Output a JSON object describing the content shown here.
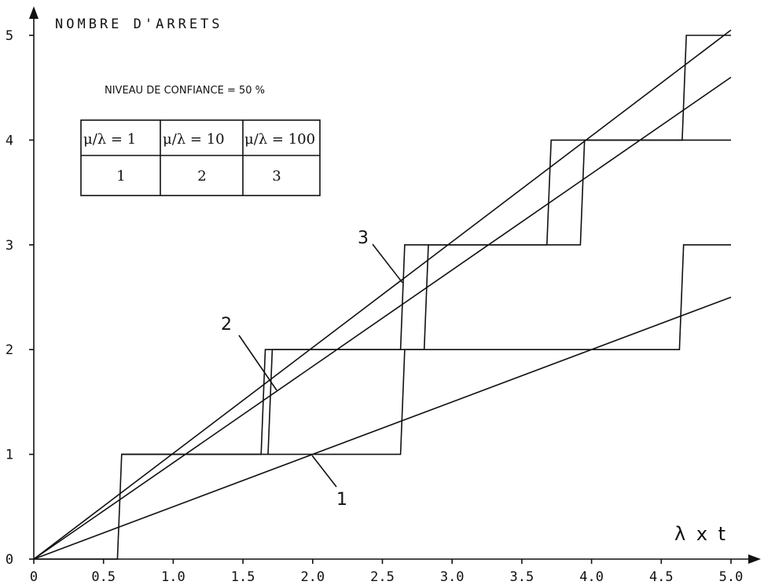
{
  "chart_data": {
    "type": "line",
    "title": "NOMBRE D'ARRETS",
    "subtitle": "NIVEAU DE CONFIANCE = 50 %",
    "xlabel": "λ x t",
    "xlim": [
      0,
      5.0
    ],
    "ylim": [
      0,
      5
    ],
    "xticks": [
      "0",
      "0.5",
      "1.0",
      "1.5",
      "2.0",
      "2.5",
      "3.0",
      "3.5",
      "4.0",
      "4.5",
      "5.0"
    ],
    "yticks": [
      "0",
      "1",
      "2",
      "3",
      "4",
      "5"
    ],
    "legend_table": {
      "headers": [
        "μ/λ = 1",
        "μ/λ = 10",
        "μ/λ = 100"
      ],
      "values": [
        "1",
        "2",
        "3"
      ]
    },
    "series": [
      {
        "name": "1",
        "x": [
          0,
          5.0
        ],
        "y": [
          0,
          2.5
        ]
      },
      {
        "name": "2",
        "x": [
          0,
          5.0
        ],
        "y": [
          0,
          4.6
        ]
      },
      {
        "name": "3",
        "x": [
          0,
          5.0
        ],
        "y": [
          0,
          5.05
        ]
      }
    ],
    "step_curves": [
      {
        "x": [
          0,
          0.6,
          0.63,
          2.63,
          2.66,
          4.63,
          4.66,
          5.0
        ],
        "y": [
          0,
          0,
          1,
          1,
          2,
          2,
          3,
          3
        ]
      },
      {
        "x": [
          0.63,
          1.63,
          1.66,
          2.63,
          2.66,
          3.68,
          3.71,
          4.65,
          4.68,
          5.0
        ],
        "y": [
          1,
          1,
          2,
          2,
          3,
          3,
          4,
          4,
          5,
          5
        ]
      },
      {
        "x": [
          1.68,
          1.71,
          2.8,
          2.83,
          3.92,
          3.95,
          5.0
        ],
        "y": [
          1,
          2,
          2,
          3,
          3,
          4,
          4
        ]
      }
    ],
    "annotations": [
      "1",
      "2",
      "3"
    ]
  }
}
